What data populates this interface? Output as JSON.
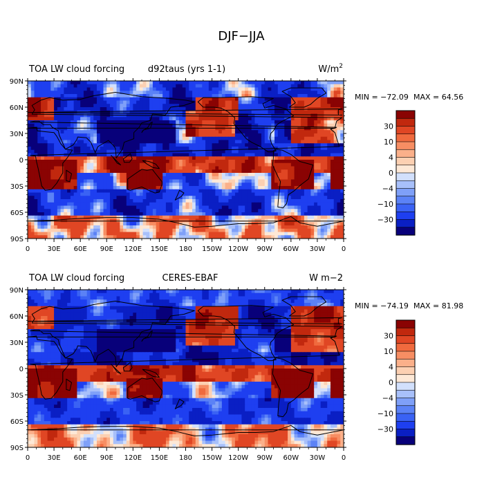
{
  "figure": {
    "title": "DJF−JJA"
  },
  "panels": [
    {
      "id": "model",
      "left_title": "TOA LW cloud forcing",
      "center_title": "d92taus (yrs 1-1)",
      "units_base": "W/m",
      "units_sup": "2",
      "min_label": "MIN = −72.09",
      "max_label": "MAX =  64.56",
      "min": -72.09,
      "max": 64.56,
      "seed": 1
    },
    {
      "id": "obs",
      "left_title": "TOA LW cloud forcing",
      "center_title": "CERES-EBAF",
      "units_base": "W m−2",
      "units_sup": "",
      "min_label": "MIN = −74.19",
      "max_label": "MAX =  81.98",
      "min": -74.19,
      "max": 81.98,
      "seed": 2
    }
  ],
  "lat_labels": [
    "90N",
    "60N",
    "30N",
    "0",
    "30S",
    "60S",
    "90S"
  ],
  "lon_labels": [
    "0",
    "30E",
    "60E",
    "90E",
    "120E",
    "150E",
    "180",
    "150W",
    "120W",
    "90W",
    "60W",
    "30W",
    "0"
  ],
  "colorbar": {
    "labels": [
      "30",
      "10",
      "4",
      "0",
      "−4",
      "−10",
      "−30"
    ],
    "levels": [
      -40,
      -30,
      -20,
      -10,
      -8,
      -6,
      -4,
      -2,
      0,
      2,
      4,
      6,
      8,
      10,
      20,
      30,
      40
    ],
    "colors": [
      "#08007a",
      "#0a1fc4",
      "#1e3ff0",
      "#3a62f4",
      "#5b82f6",
      "#7fa0f8",
      "#a8c0fa",
      "#d2e0fc",
      "#fde8d6",
      "#fcd0b2",
      "#fbb08a",
      "#f78e63",
      "#f06a3e",
      "#e04624",
      "#c1280e",
      "#8a0303"
    ]
  }
}
